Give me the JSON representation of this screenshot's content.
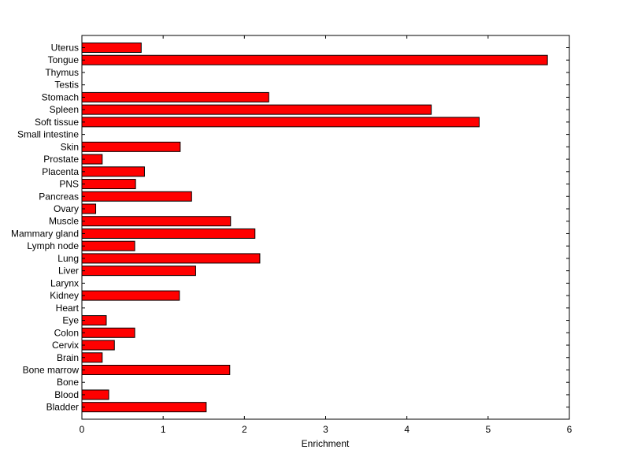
{
  "chart_data": {
    "type": "bar",
    "orientation": "horizontal",
    "title": "",
    "xlabel": "Enrichment",
    "ylabel": "",
    "xlim": [
      0,
      6
    ],
    "x_ticks": [
      0,
      1,
      2,
      3,
      4,
      5,
      6
    ],
    "grid": false,
    "bar_color": "#ff0000",
    "edge_color": "#000000",
    "categories": [
      "Uterus",
      "Tongue",
      "Thymus",
      "Testis",
      "Stomach",
      "Spleen",
      "Soft tissue",
      "Small intestine",
      "Skin",
      "Prostate",
      "Placenta",
      "PNS",
      "Pancreas",
      "Ovary",
      "Muscle",
      "Mammary gland",
      "Lymph node",
      "Lung",
      "Liver",
      "Larynx",
      "Kidney",
      "Heart",
      "Eye",
      "Colon",
      "Cervix",
      "Brain",
      "Bone marrow",
      "Bone",
      "Blood",
      "Bladder"
    ],
    "values": [
      0.73,
      5.73,
      0,
      0,
      2.3,
      4.3,
      4.89,
      0,
      1.21,
      0.25,
      0.77,
      0.66,
      1.35,
      0.17,
      1.83,
      2.13,
      0.65,
      2.19,
      1.4,
      0,
      1.2,
      0,
      0.3,
      0.65,
      0.4,
      0.25,
      1.82,
      0,
      0.33,
      1.53
    ]
  }
}
